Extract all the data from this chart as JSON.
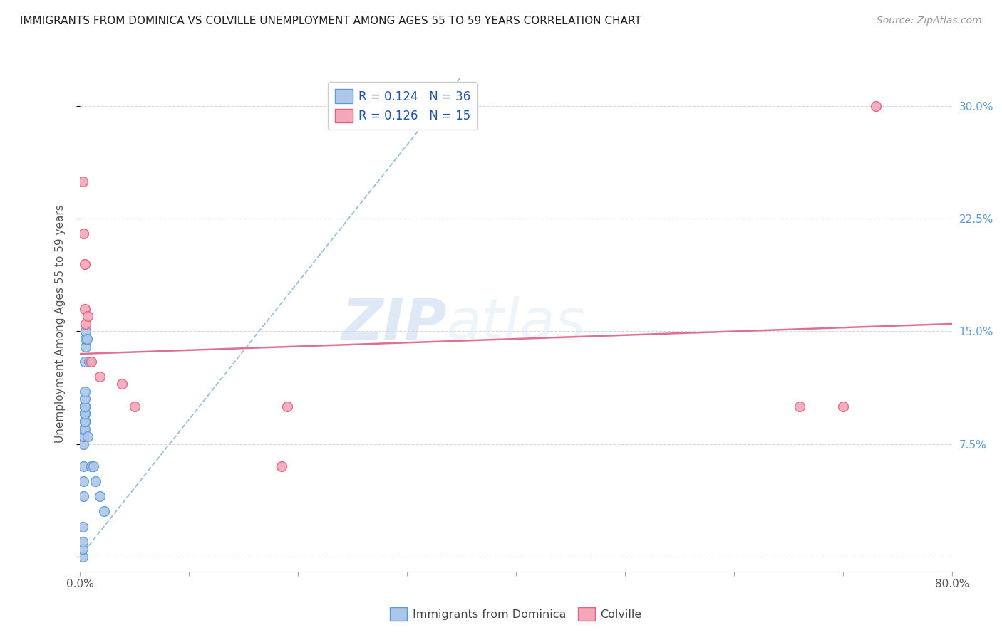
{
  "title": "IMMIGRANTS FROM DOMINICA VS COLVILLE UNEMPLOYMENT AMONG AGES 55 TO 59 YEARS CORRELATION CHART",
  "source": "Source: ZipAtlas.com",
  "ylabel": "Unemployment Among Ages 55 to 59 years",
  "xlim": [
    0.0,
    0.8
  ],
  "ylim": [
    -0.01,
    0.32
  ],
  "xticks": [
    0.0,
    0.1,
    0.2,
    0.3,
    0.4,
    0.5,
    0.6,
    0.7,
    0.8
  ],
  "xticklabels": [
    "0.0%",
    "",
    "",
    "",
    "",
    "",
    "",
    "",
    "80.0%"
  ],
  "yticks_right": [
    0.0,
    0.075,
    0.15,
    0.225,
    0.3
  ],
  "yticklabels_right": [
    "",
    "7.5%",
    "15.0%",
    "22.5%",
    "30.0%"
  ],
  "dominica_R": "0.124",
  "dominica_N": "36",
  "colville_R": "0.126",
  "colville_N": "15",
  "legend_labels": [
    "Immigrants from Dominica",
    "Colville"
  ],
  "dominica_color": "#aec6e8",
  "colville_color": "#f4a7b9",
  "dominica_edge_color": "#5b9bd5",
  "colville_edge_color": "#e0607e",
  "dominica_trend_color": "#7bafd4",
  "colville_trend_color": "#e07090",
  "watermark": "ZIPatlas",
  "background_color": "#ffffff",
  "grid_color": "#d8d8d8",
  "dominica_x": [
    0.002,
    0.002,
    0.002,
    0.002,
    0.003,
    0.003,
    0.003,
    0.003,
    0.003,
    0.003,
    0.003,
    0.004,
    0.004,
    0.004,
    0.004,
    0.004,
    0.004,
    0.004,
    0.004,
    0.004,
    0.004,
    0.004,
    0.004,
    0.004,
    0.004,
    0.005,
    0.005,
    0.005,
    0.006,
    0.007,
    0.008,
    0.01,
    0.012,
    0.014,
    0.018,
    0.022
  ],
  "dominica_y": [
    0.0,
    0.005,
    0.01,
    0.02,
    0.04,
    0.05,
    0.06,
    0.075,
    0.08,
    0.08,
    0.085,
    0.085,
    0.09,
    0.09,
    0.09,
    0.095,
    0.095,
    0.095,
    0.1,
    0.1,
    0.1,
    0.1,
    0.105,
    0.11,
    0.13,
    0.14,
    0.145,
    0.15,
    0.145,
    0.08,
    0.13,
    0.06,
    0.06,
    0.05,
    0.04,
    0.03
  ],
  "colville_x": [
    0.002,
    0.003,
    0.004,
    0.004,
    0.005,
    0.007,
    0.01,
    0.018,
    0.038,
    0.05,
    0.185,
    0.19,
    0.66,
    0.7,
    0.73
  ],
  "colville_y": [
    0.25,
    0.215,
    0.195,
    0.165,
    0.155,
    0.16,
    0.13,
    0.12,
    0.115,
    0.1,
    0.06,
    0.1,
    0.1,
    0.1,
    0.3
  ],
  "dominica_trend": [
    0.0,
    0.35,
    0.0,
    0.32
  ],
  "colville_trend": [
    0.0,
    0.8,
    0.135,
    0.155
  ]
}
